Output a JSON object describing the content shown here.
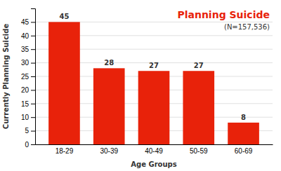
{
  "chart_data": {
    "type": "bar",
    "title": "Planning Suicide",
    "subtitle": "(N=157,536)",
    "categories": [
      "18-29",
      "30-39",
      "40-49",
      "50-59",
      "60-69"
    ],
    "values": [
      45,
      28,
      27,
      27,
      8
    ],
    "color": "#E8220A",
    "xlabel": "Age Groups",
    "ylabel": "Currently Planning Suicide",
    "ylim": [
      0,
      50
    ],
    "yticks": [
      0,
      5,
      10,
      15,
      20,
      25,
      30,
      35,
      40,
      45
    ],
    "grid": true,
    "data_labels": true
  }
}
